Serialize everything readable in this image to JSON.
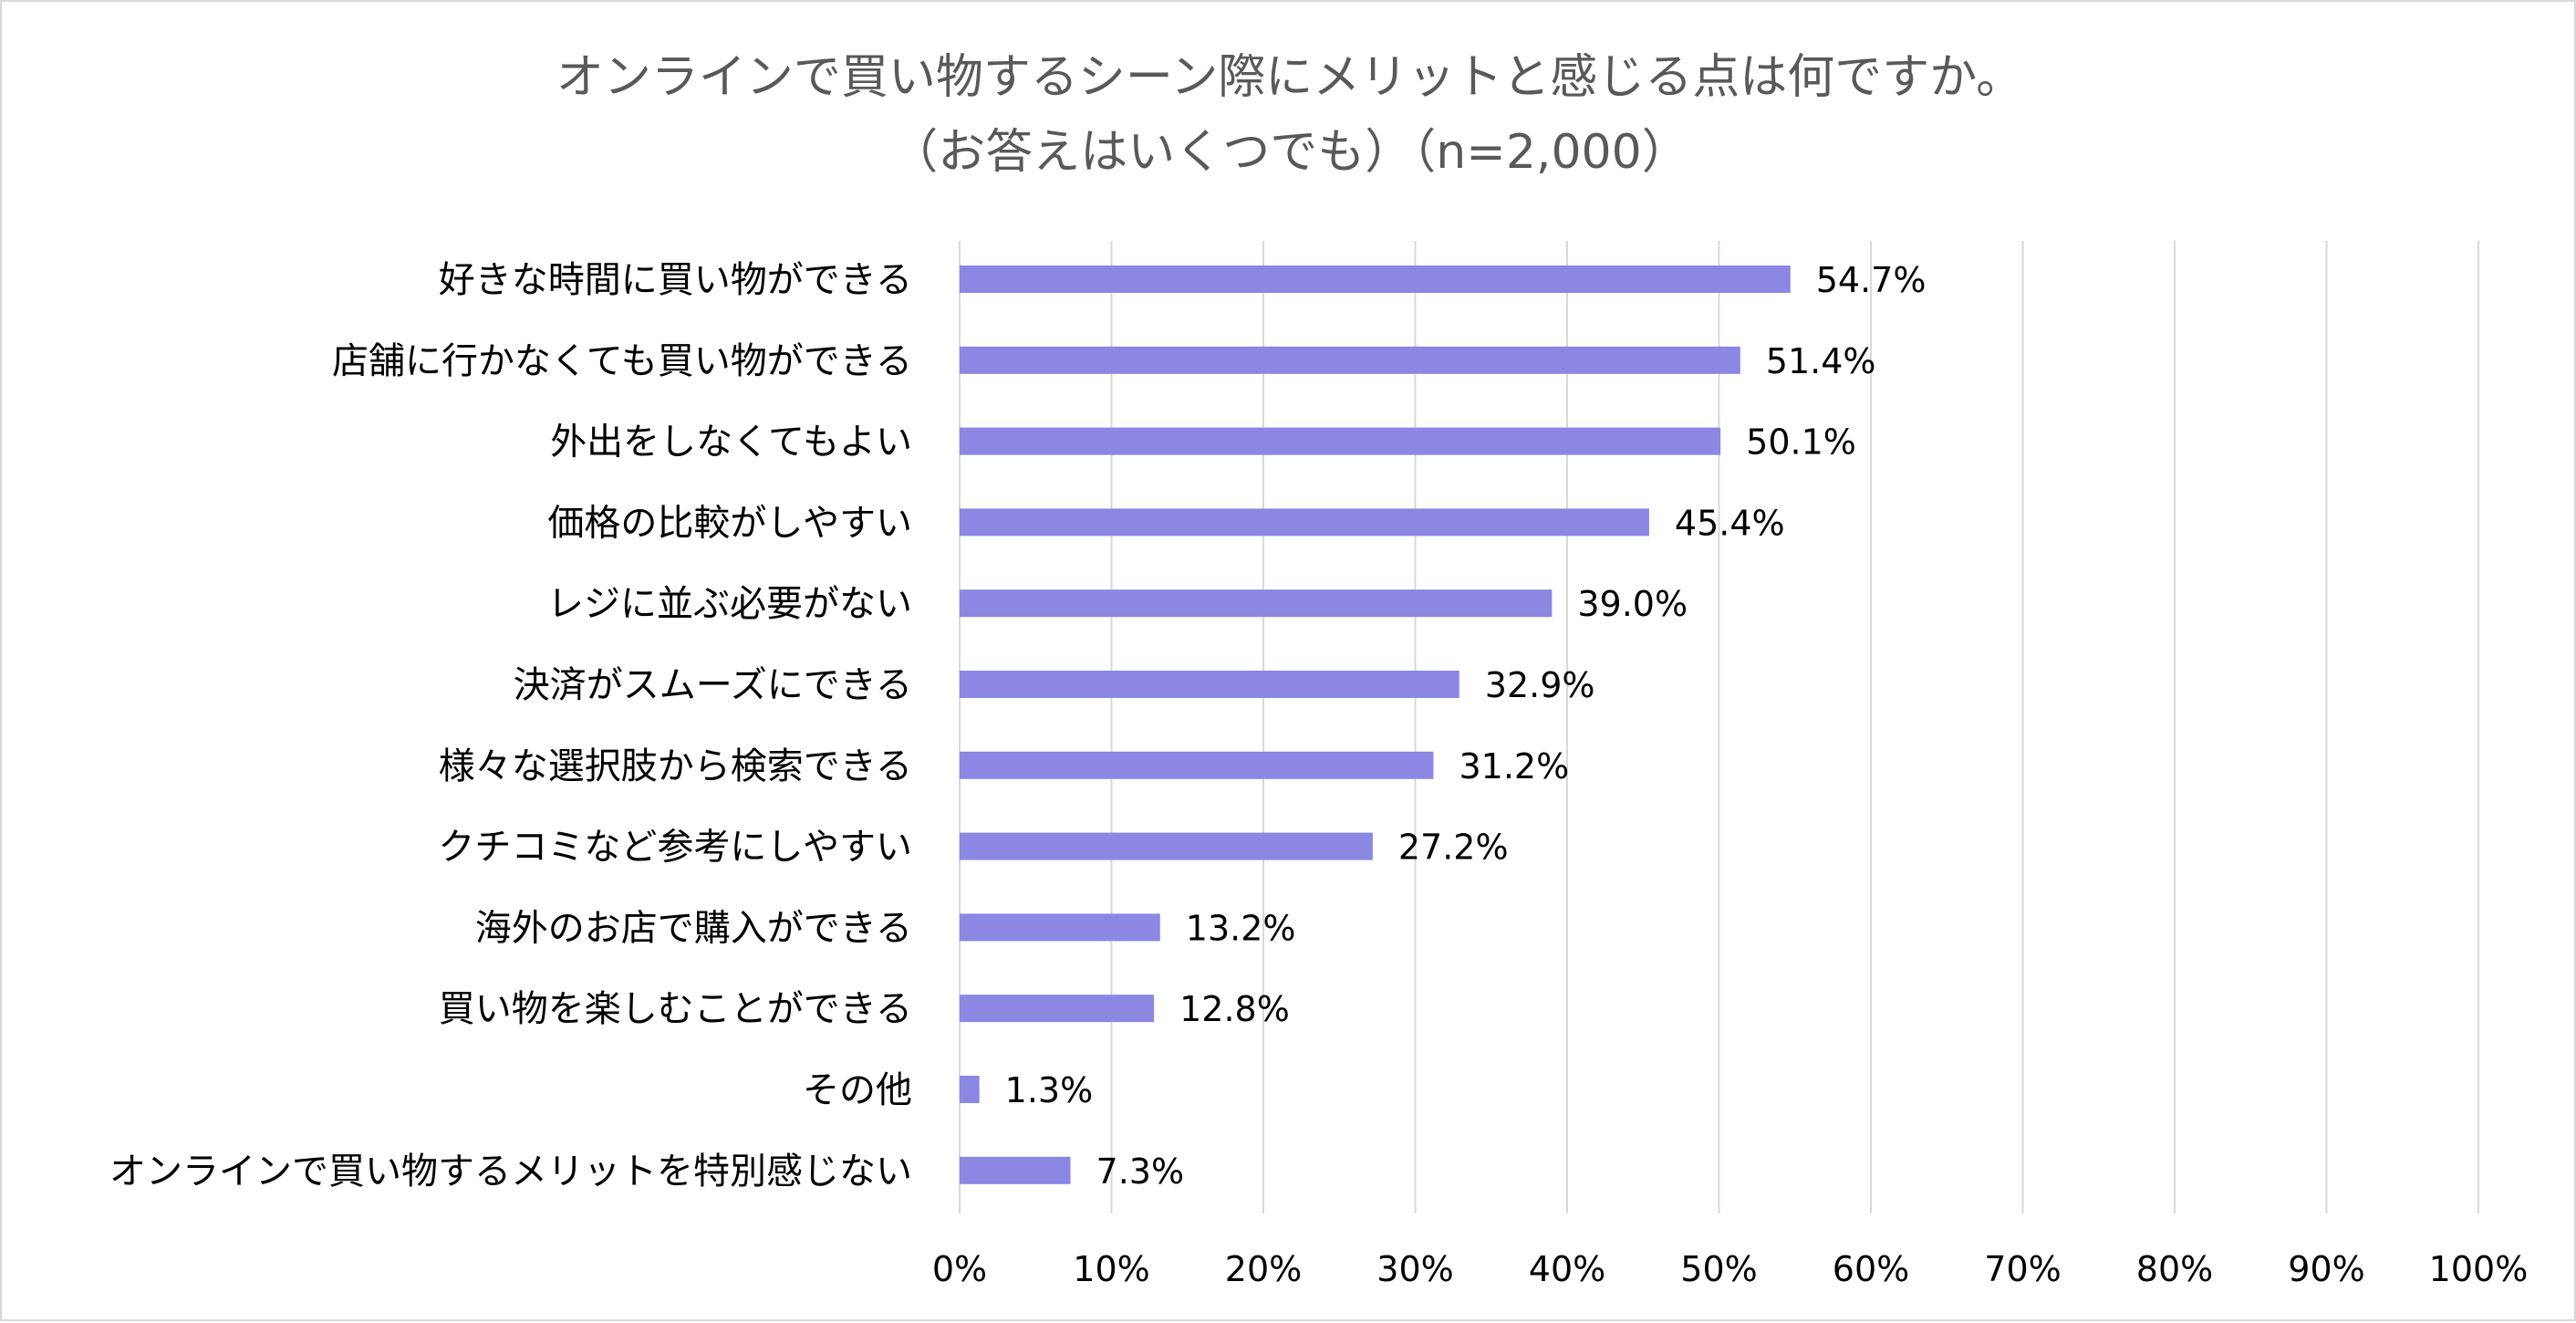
{
  "chart_data": {
    "type": "bar",
    "orientation": "horizontal",
    "title": "オンラインで買い物するシーン際にメリットと感じる点は何ですか。",
    "subtitle": "（お答えはいくつでも）（n=2,000）",
    "categories": [
      "好きな時間に買い物ができる",
      "店舗に行かなくても買い物ができる",
      "外出をしなくてもよい",
      "価格の比較がしやすい",
      "レジに並ぶ必要がない",
      "決済がスムーズにできる",
      "様々な選択肢から検索できる",
      "クチコミなど参考にしやすい",
      "海外のお店で購入ができる",
      "買い物を楽しむことができる",
      "その他",
      "オンラインで買い物するメリットを特別感じない"
    ],
    "values": [
      54.7,
      51.4,
      50.1,
      45.4,
      39.0,
      32.9,
      31.2,
      27.2,
      13.2,
      12.8,
      1.3,
      7.3
    ],
    "data_labels": [
      "54.7%",
      "51.4%",
      "50.1%",
      "45.4%",
      "39.0%",
      "32.9%",
      "31.2%",
      "27.2%",
      "13.2%",
      "12.8%",
      "1.3%",
      "7.3%"
    ],
    "xlim": [
      0,
      100
    ],
    "xticks": [
      0,
      10,
      20,
      30,
      40,
      50,
      60,
      70,
      80,
      90,
      100
    ],
    "xtick_labels": [
      "0%",
      "10%",
      "20%",
      "30%",
      "40%",
      "50%",
      "60%",
      "70%",
      "80%",
      "90%",
      "100%"
    ],
    "xlabel": "",
    "ylabel": "",
    "grid": "vertical",
    "legend": "none",
    "colors": {
      "bar": "#8b87e3",
      "grid": "#d9d9d9",
      "title": "#595959",
      "text": "#000000",
      "border": "#d9d9d9"
    }
  }
}
